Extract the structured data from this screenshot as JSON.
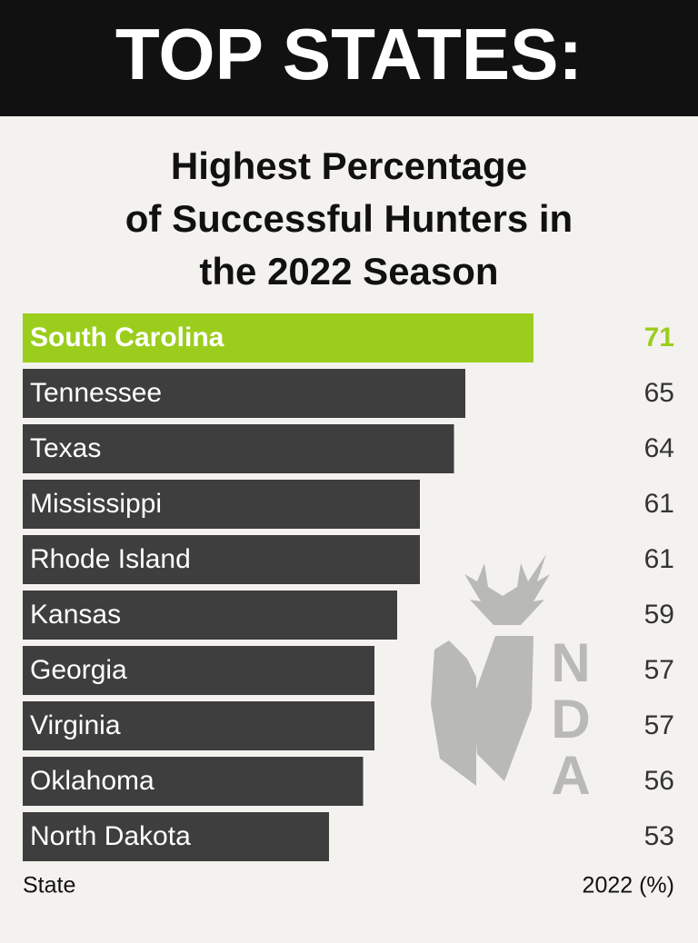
{
  "chart_data": {
    "type": "bar",
    "orientation": "horizontal",
    "title": "TOP STATES:",
    "subtitle_lines": [
      "Highest Percentage",
      "of Successful Hunters in",
      "the 2022 Season"
    ],
    "categories": [
      "South Carolina",
      "Tennessee",
      "Texas",
      "Mississippi",
      "Rhode Island",
      "Kansas",
      "Georgia",
      "Virginia",
      "Oklahoma",
      "North Dakota"
    ],
    "values": [
      71,
      65,
      64,
      61,
      61,
      59,
      57,
      57,
      56,
      53
    ],
    "colors": [
      "#9bcd1d",
      "#3e3e3e",
      "#3e3e3e",
      "#3e3e3e",
      "#3e3e3e",
      "#3e3e3e",
      "#3e3e3e",
      "#3e3e3e",
      "#3e3e3e",
      "#3e3e3e"
    ],
    "value_colors": [
      "#9bcd1d",
      "#333333",
      "#333333",
      "#333333",
      "#333333",
      "#333333",
      "#333333",
      "#333333",
      "#333333",
      "#333333"
    ],
    "category_axis_label": "State",
    "value_axis_label": "2022 (%)",
    "watermark": [
      "N",
      "D",
      "A"
    ]
  }
}
